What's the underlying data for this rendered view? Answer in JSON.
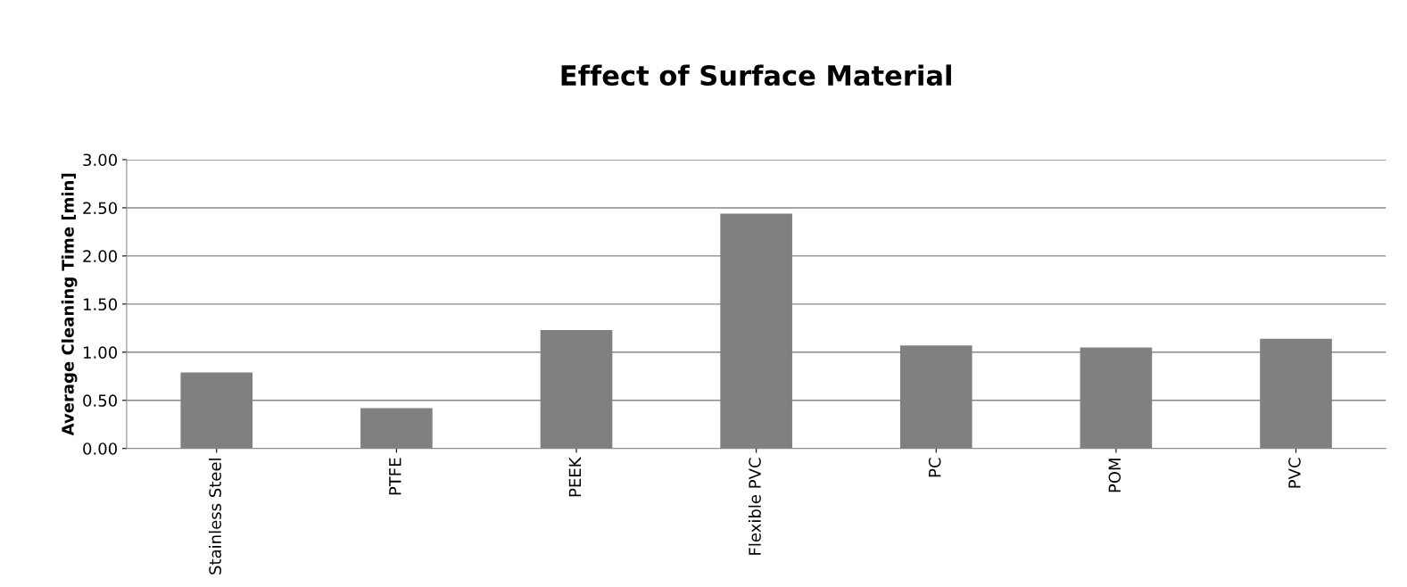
{
  "chart_data": {
    "type": "bar",
    "title": "Effect of Surface Material",
    "ylabel": "Average Cleaning Time [min]",
    "categories": [
      "Stainless Steel",
      "PTFE",
      "PEEK",
      "Flexible PVC",
      "PC",
      "POM",
      "PVC"
    ],
    "values": [
      0.79,
      0.42,
      1.23,
      2.44,
      1.07,
      1.05,
      1.14
    ],
    "color": "#808080",
    "ylim": [
      0,
      3
    ],
    "yticks": [
      {
        "value": 0,
        "label": "0.00"
      },
      {
        "value": 0.5,
        "label": "0.50"
      },
      {
        "value": 1,
        "label": "1.00"
      },
      {
        "value": 1.5,
        "label": "1.50"
      },
      {
        "value": 2,
        "label": "2.00"
      },
      {
        "value": 2.5,
        "label": "2.50"
      },
      {
        "value": 3,
        "label": "3.00"
      }
    ],
    "grid": "y",
    "legend": false
  }
}
